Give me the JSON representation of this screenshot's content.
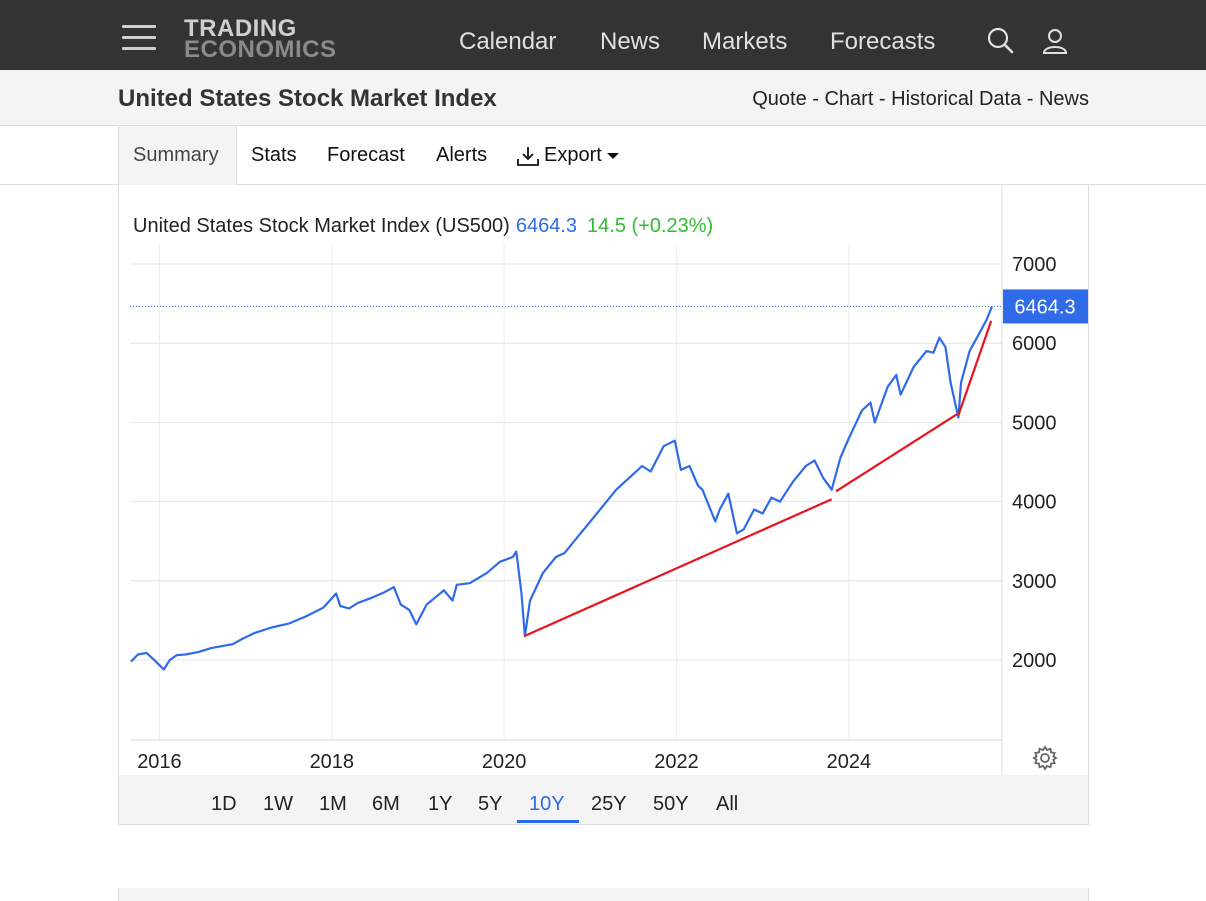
{
  "nav": {
    "logo_line1": "TRADING",
    "logo_line2": "ECONOMICS",
    "links": [
      "Calendar",
      "News",
      "Markets",
      "Forecasts"
    ]
  },
  "page": {
    "title": "United States Stock Market Index",
    "crumbs": [
      "Quote",
      "Chart",
      "Historical Data",
      "News"
    ],
    "crumb_sep": " - "
  },
  "tabs": {
    "active": "Summary",
    "items": [
      "Stats",
      "Forecast",
      "Alerts"
    ],
    "export": "Export"
  },
  "chart_header": {
    "name": "United States Stock Market Index (US500)",
    "price": "6464.3",
    "change": "14.5 (+0.23%)"
  },
  "range_buttons": [
    "1D",
    "1W",
    "1M",
    "6M",
    "1Y",
    "5Y",
    "10Y",
    "25Y",
    "50Y",
    "All"
  ],
  "range_active": "10Y",
  "colors": {
    "line": "#2f6be8",
    "trend": "#e8141e",
    "change_up": "#33bb33",
    "topbar": "#333333"
  },
  "chart_data": {
    "type": "line",
    "title": "United States Stock Market Index (US500)",
    "xlabel": "",
    "ylabel": "",
    "x_ticks": [
      "2016",
      "2018",
      "2020",
      "2022",
      "2024"
    ],
    "y_ticks": [
      2000,
      3000,
      4000,
      5000,
      6000,
      7000
    ],
    "xlim": [
      2015.65,
      2025.8
    ],
    "ylim": [
      1000,
      7300
    ],
    "last_value_label": "6464.3",
    "grid": true,
    "series": [
      {
        "x": [
          2015.67,
          2015.75,
          2015.85,
          2015.95,
          2016.05,
          2016.12,
          2016.2,
          2016.3,
          2016.45,
          2016.6,
          2016.75,
          2016.85,
          2016.95,
          2017.1,
          2017.3,
          2017.5,
          2017.7,
          2017.9,
          2018.05,
          2018.1,
          2018.2,
          2018.3,
          2018.45,
          2018.6,
          2018.72,
          2018.8,
          2018.9,
          2018.98,
          2019.1,
          2019.3,
          2019.4,
          2019.45,
          2019.6,
          2019.8,
          2019.95,
          2020.1,
          2020.14,
          2020.2,
          2020.24,
          2020.3,
          2020.45,
          2020.6,
          2020.7,
          2020.85,
          2021.0,
          2021.15,
          2021.3,
          2021.45,
          2021.6,
          2021.7,
          2021.85,
          2021.98,
          2022.05,
          2022.15,
          2022.25,
          2022.3,
          2022.45,
          2022.5,
          2022.6,
          2022.7,
          2022.78,
          2022.9,
          2023.0,
          2023.1,
          2023.2,
          2023.35,
          2023.5,
          2023.6,
          2023.7,
          2023.8,
          2023.9,
          2024.0,
          2024.15,
          2024.25,
          2024.3,
          2024.45,
          2024.55,
          2024.6,
          2024.75,
          2024.9,
          2024.98,
          2025.05,
          2025.12,
          2025.18,
          2025.27,
          2025.3,
          2025.4,
          2025.5,
          2025.6,
          2025.66
        ],
        "y": [
          1980,
          2070,
          2090,
          1990,
          1880,
          2000,
          2060,
          2070,
          2100,
          2150,
          2180,
          2200,
          2260,
          2340,
          2410,
          2460,
          2550,
          2660,
          2840,
          2680,
          2650,
          2720,
          2780,
          2850,
          2920,
          2700,
          2630,
          2450,
          2700,
          2880,
          2750,
          2950,
          2970,
          3100,
          3240,
          3300,
          3370,
          2850,
          2300,
          2750,
          3100,
          3300,
          3350,
          3550,
          3750,
          3950,
          4150,
          4300,
          4450,
          4380,
          4700,
          4770,
          4400,
          4450,
          4200,
          4150,
          3750,
          3900,
          4100,
          3600,
          3650,
          3900,
          3850,
          4050,
          4000,
          4250,
          4450,
          4520,
          4300,
          4150,
          4550,
          4800,
          5150,
          5250,
          5000,
          5450,
          5600,
          5350,
          5700,
          5900,
          5880,
          6070,
          5950,
          5500,
          5060,
          5500,
          5900,
          6100,
          6300,
          6464.3
        ]
      }
    ],
    "trend_lines": [
      {
        "x": [
          2020.23,
          2023.8
        ],
        "y": [
          2300,
          4030
        ]
      },
      {
        "x": [
          2023.85,
          2025.25
        ],
        "y": [
          4130,
          5100
        ]
      },
      {
        "x": [
          2025.27,
          2025.65
        ],
        "y": [
          5090,
          6280
        ]
      }
    ]
  }
}
